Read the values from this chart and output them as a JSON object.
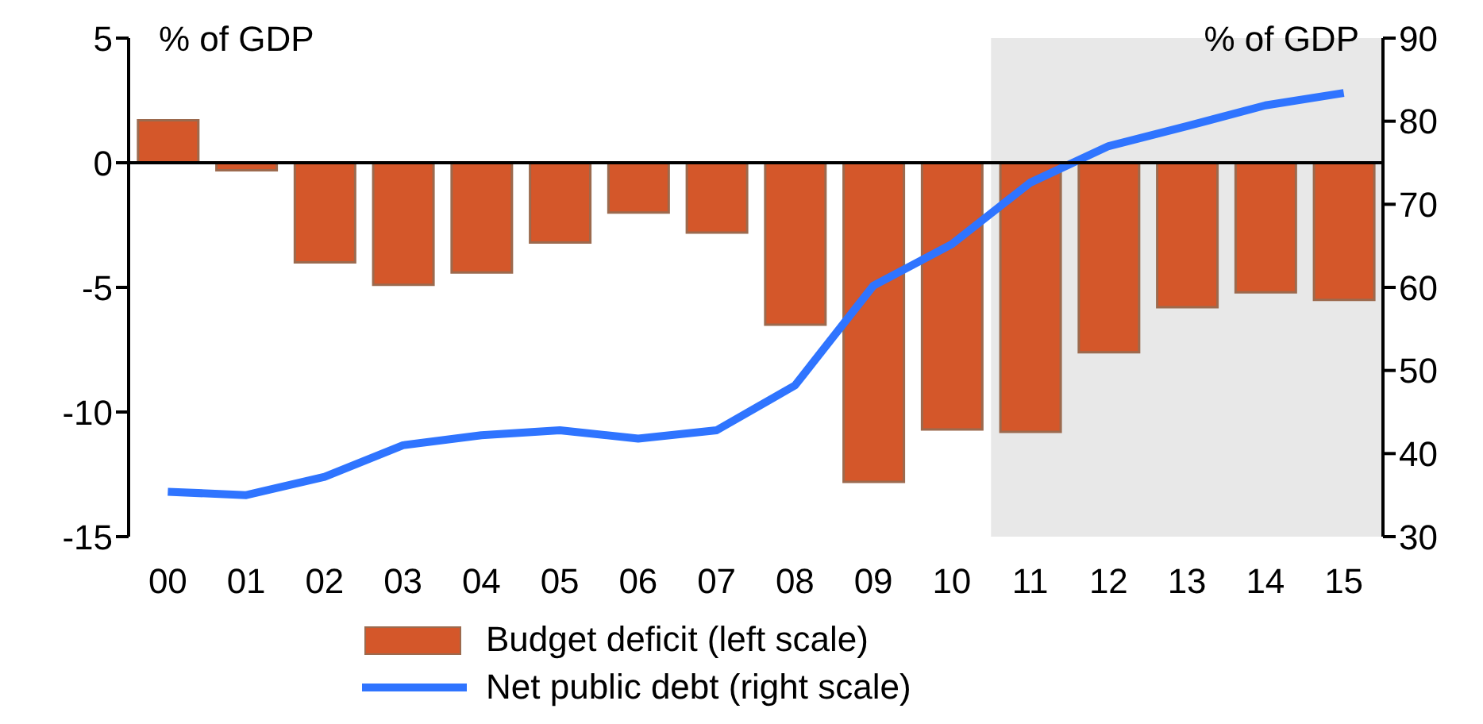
{
  "chart_data": {
    "type": "bar",
    "ylabel": "% of GDP",
    "y2label": "% of GDP",
    "categories": [
      "00",
      "01",
      "02",
      "03",
      "04",
      "05",
      "06",
      "07",
      "08",
      "09",
      "10",
      "11",
      "12",
      "13",
      "14",
      "15"
    ],
    "series": [
      {
        "name": "Budget deficit (left scale)",
        "color": "#d4572a",
        "values": [
          1.7,
          -0.3,
          -4.0,
          -4.9,
          -4.4,
          -3.2,
          -2.0,
          -2.8,
          -6.5,
          -12.8,
          -10.7,
          -10.8,
          -7.6,
          -5.8,
          -5.2,
          -5.5
        ]
      },
      {
        "name": "Net public debt (right scale)",
        "type": "line",
        "axis": "y2",
        "color": "#2f74ff",
        "values": [
          35.4,
          35.0,
          37.2,
          41.0,
          42.2,
          42.8,
          41.8,
          42.8,
          48.2,
          60.2,
          65.2,
          72.6,
          77.0,
          79.4,
          81.9,
          83.4
        ]
      }
    ],
    "ylim": [
      -15,
      5
    ],
    "yticks": [
      -15,
      -10,
      -5,
      0,
      5
    ],
    "y2lim": [
      30,
      90
    ],
    "y2ticks": [
      30,
      40,
      50,
      60,
      70,
      80,
      90
    ],
    "bands": [
      {
        "axis": "x",
        "from": "11",
        "to": "15",
        "color": "#e8e8e8"
      }
    ],
    "legend": "bottom",
    "marker": "none",
    "line_style": "solid"
  }
}
